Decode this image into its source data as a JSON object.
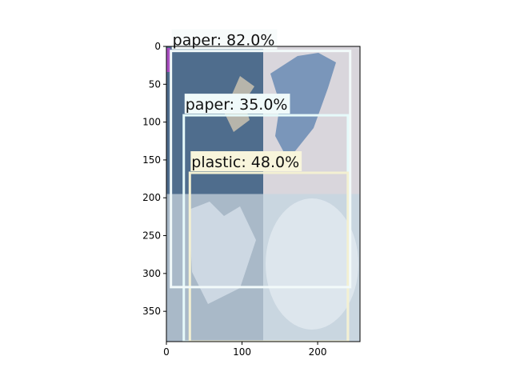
{
  "chart_data": {
    "type": "image-with-detections",
    "xlim": [
      0,
      256
    ],
    "ylim": [
      390,
      0
    ],
    "xticks": [
      "0",
      "100",
      "200"
    ],
    "yticks": [
      "0",
      "50",
      "100",
      "150",
      "200",
      "250",
      "300",
      "350"
    ],
    "image": {
      "width": 256,
      "height": 390,
      "quadrants": [
        {
          "name": "denim-with-paper-scrap",
          "x": [
            0,
            128
          ],
          "y": [
            0,
            195
          ],
          "color": "#4f6d8d"
        },
        {
          "name": "blue-plastic-bag",
          "x": [
            128,
            256
          ],
          "y": [
            0,
            195
          ],
          "color": "#d9d6dc"
        },
        {
          "name": "white-plastic-piece",
          "x": [
            0,
            128
          ],
          "y": [
            195,
            390
          ],
          "color": "#a9b9c8"
        },
        {
          "name": "plastic-container",
          "x": [
            128,
            256
          ],
          "y": [
            195,
            390
          ],
          "color": "#c9d6e0"
        }
      ]
    },
    "detections": [
      {
        "label": "paper: 35.0%",
        "x0": 23,
        "y0": 91,
        "x1": 240,
        "y1": 390,
        "box_color": "#e6fafa",
        "label_bg": "#f0fafa"
      },
      {
        "label": "plastic: 48.0%",
        "x0": 31,
        "y0": 167,
        "x1": 240,
        "y1": 390,
        "box_color": "#f3f0d2",
        "label_bg": "#f8f5dc"
      },
      {
        "label": "paper: 82.0%",
        "x0": 6,
        "y0": 6,
        "x1": 243,
        "y1": 318,
        "box_color": "#f2fafa",
        "label_bg": "#f7fbfb"
      }
    ]
  }
}
